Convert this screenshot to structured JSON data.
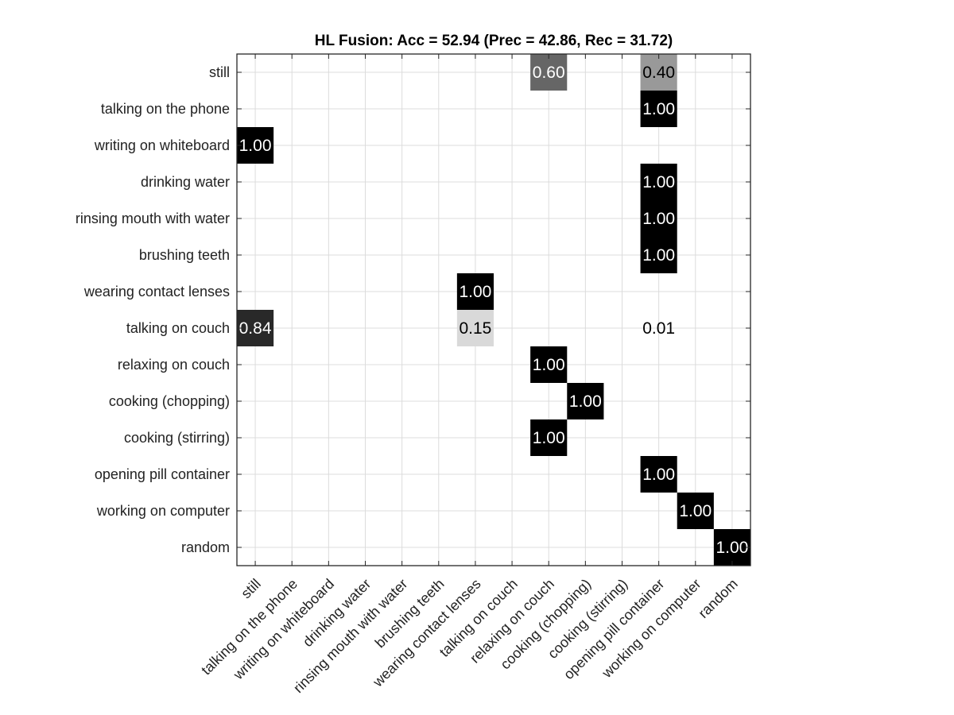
{
  "chart_data": {
    "type": "heatmap",
    "title": "HL Fusion: Acc = 52.94 (Prec = 42.86, Rec = 31.72)",
    "xlabel": "",
    "ylabel": "",
    "grid": true,
    "colormap": "grayscale-inverted",
    "value_format": "2 decimals",
    "row_labels": [
      "still",
      "talking on the phone",
      "writing on whiteboard",
      "drinking water",
      "rinsing mouth with water",
      "brushing teeth",
      "wearing contact lenses",
      "talking on couch",
      "relaxing on couch",
      "cooking (chopping)",
      "cooking (stirring)",
      "opening pill container",
      "working on computer",
      "random"
    ],
    "col_labels": [
      "still",
      "talking on the phone",
      "writing on whiteboard",
      "drinking water",
      "rinsing mouth with water",
      "brushing teeth",
      "wearing contact lenses",
      "talking on couch",
      "relaxing on couch",
      "cooking (chopping)",
      "cooking (stirring)",
      "opening pill container",
      "working on computer",
      "random"
    ],
    "cells": [
      {
        "row": 0,
        "col": 8,
        "value": 0.6
      },
      {
        "row": 0,
        "col": 11,
        "value": 0.4
      },
      {
        "row": 1,
        "col": 11,
        "value": 1.0
      },
      {
        "row": 2,
        "col": 0,
        "value": 1.0
      },
      {
        "row": 3,
        "col": 11,
        "value": 1.0
      },
      {
        "row": 4,
        "col": 11,
        "value": 1.0
      },
      {
        "row": 5,
        "col": 11,
        "value": 1.0
      },
      {
        "row": 6,
        "col": 6,
        "value": 1.0
      },
      {
        "row": 7,
        "col": 0,
        "value": 0.84
      },
      {
        "row": 7,
        "col": 6,
        "value": 0.15
      },
      {
        "row": 7,
        "col": 11,
        "value": 0.01
      },
      {
        "row": 8,
        "col": 8,
        "value": 1.0
      },
      {
        "row": 9,
        "col": 9,
        "value": 1.0
      },
      {
        "row": 10,
        "col": 8,
        "value": 1.0
      },
      {
        "row": 11,
        "col": 11,
        "value": 1.0
      },
      {
        "row": 12,
        "col": 12,
        "value": 1.0
      },
      {
        "row": 13,
        "col": 13,
        "value": 1.0
      }
    ]
  }
}
